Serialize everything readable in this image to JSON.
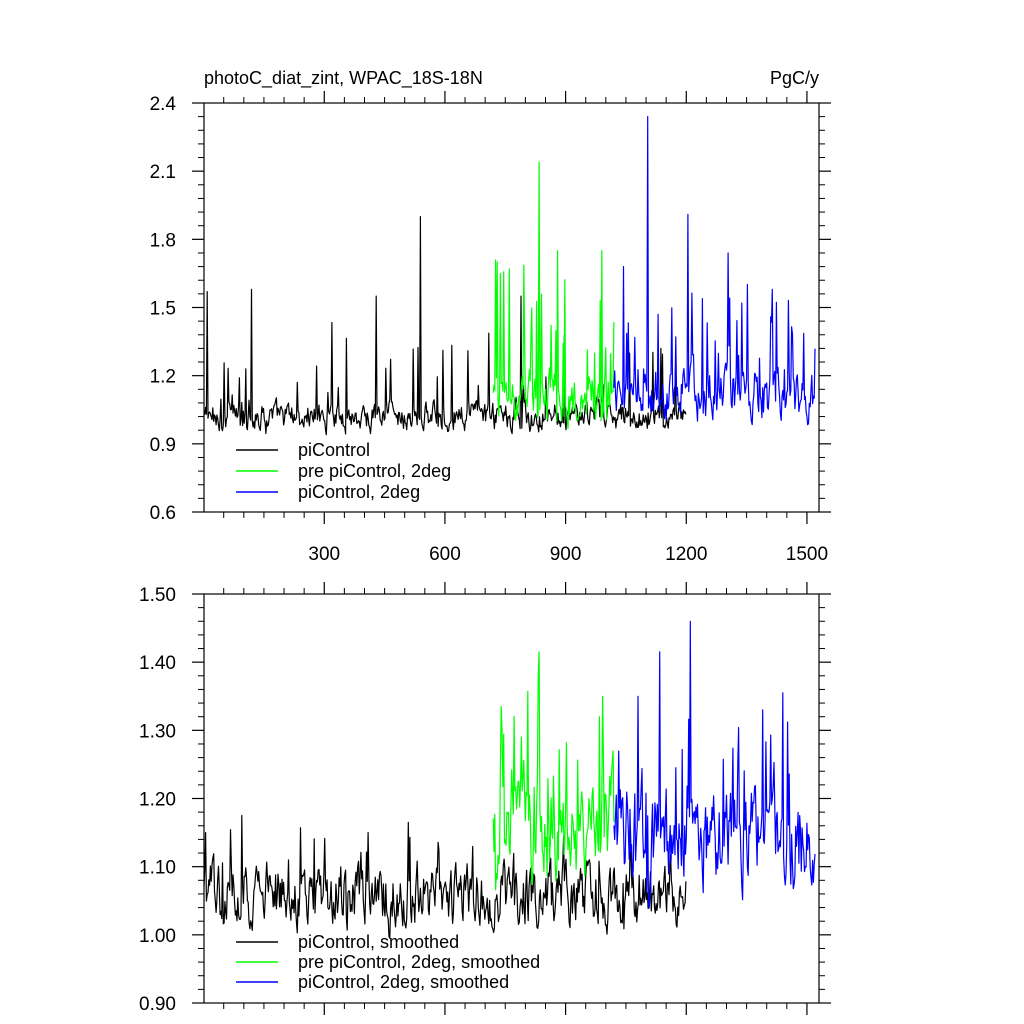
{
  "title_left": "photoC_diat_zint, WPAC_18S-18N",
  "units_label": "PgC/y",
  "chart_data": [
    {
      "type": "line",
      "title": "photoC_diat_zint, WPAC_18S-18N",
      "units": "PgC/y",
      "xlim": [
        1,
        1530
      ],
      "ylim": [
        0.6,
        2.4
      ],
      "xticks": [
        300,
        600,
        900,
        1200,
        1500
      ],
      "xtick_labels": [
        "300",
        "600",
        "900",
        "1200",
        "1500"
      ],
      "yticks": [
        0.6,
        0.9,
        1.2,
        1.5,
        1.8,
        2.1,
        2.4
      ],
      "ytick_labels": [
        "0.6",
        "0.9",
        "1.2",
        "1.5",
        "1.8",
        "2.1",
        "2.4"
      ],
      "legend_position": "bottom-left",
      "series": [
        {
          "name": "piControl",
          "color": "#000000",
          "x_range": [
            1,
            1200
          ],
          "baseline": 1.02,
          "noise": 0.05,
          "spike_prob": 0.09,
          "spike_max": 0.35,
          "min_clip": 0.9,
          "peaks": [
            [
              10,
              1.57
            ],
            [
              120,
              1.58
            ],
            [
              540,
              1.9
            ],
            [
              430,
              1.55
            ],
            [
              790,
              1.55
            ]
          ]
        },
        {
          "name": "pre piControl, 2deg",
          "color": "#00ff00",
          "x_range": [
            720,
            1020
          ],
          "baseline": 1.1,
          "noise": 0.09,
          "spike_prob": 0.2,
          "spike_max": 0.55,
          "min_clip": 0.89,
          "peaks": [
            [
              835,
              2.14
            ],
            [
              730,
              1.7
            ],
            [
              760,
              1.67
            ],
            [
              880,
              1.75
            ],
            [
              990,
              1.75
            ]
          ]
        },
        {
          "name": "piControl, 2deg",
          "color": "#0000ff",
          "x_range": [
            1020,
            1520
          ],
          "baseline": 1.12,
          "noise": 0.09,
          "spike_prob": 0.18,
          "spike_max": 0.45,
          "min_clip": 0.93,
          "peaks": [
            [
              1105,
              2.34
            ],
            [
              1205,
              1.91
            ],
            [
              1045,
              1.68
            ],
            [
              1305,
              1.74
            ],
            [
              1415,
              1.58
            ]
          ]
        }
      ]
    },
    {
      "type": "line",
      "title": "",
      "xlim": [
        1,
        1530
      ],
      "ylim": [
        0.9,
        1.5
      ],
      "xticks": [
        300,
        600,
        900,
        1200,
        1500
      ],
      "xtick_labels": [],
      "yticks": [
        0.9,
        1.0,
        1.1,
        1.2,
        1.3,
        1.4,
        1.5
      ],
      "ytick_labels": [
        "0.90",
        "1.00",
        "1.10",
        "1.20",
        "1.30",
        "1.40",
        "1.50"
      ],
      "legend_position": "bottom-left",
      "series": [
        {
          "name": "piControl, smoothed",
          "color": "#000000",
          "x_range": [
            1,
            1200
          ],
          "baseline": 1.06,
          "noise": 0.035,
          "spike_prob": 0.06,
          "spike_max": 0.08,
          "min_clip": 0.97,
          "peaks": [
            [
              95,
              1.175
            ],
            [
              510,
              1.165
            ],
            [
              410,
              1.15
            ],
            [
              5,
              1.15
            ]
          ]
        },
        {
          "name": "pre piControl, 2deg, smoothed",
          "color": "#00ff00",
          "x_range": [
            720,
            1020
          ],
          "baseline": 1.15,
          "noise": 0.06,
          "spike_prob": 0.15,
          "spike_max": 0.15,
          "min_clip": 1.0,
          "peaks": [
            [
              835,
              1.415
            ],
            [
              740,
              1.335
            ],
            [
              985,
              1.32
            ],
            [
              790,
              1.29
            ]
          ]
        },
        {
          "name": "piControl, 2deg, smoothed",
          "color": "#0000ff",
          "x_range": [
            1020,
            1520
          ],
          "baseline": 1.14,
          "noise": 0.055,
          "spike_prob": 0.14,
          "spike_max": 0.14,
          "min_clip": 1.0,
          "peaks": [
            [
              1210,
              1.46
            ],
            [
              1135,
              1.415
            ],
            [
              1440,
              1.355
            ],
            [
              1080,
              1.35
            ],
            [
              1390,
              1.33
            ]
          ]
        }
      ]
    }
  ]
}
